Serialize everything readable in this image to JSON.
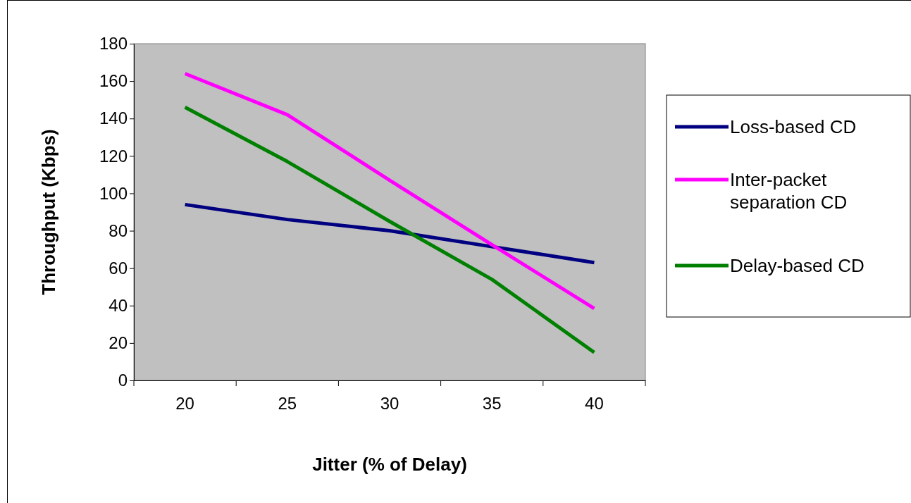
{
  "chart_data": {
    "type": "line",
    "xlabel": "Jitter (% of Delay)",
    "ylabel": "Throughput (Kbps)",
    "categories": [
      "20",
      "25",
      "30",
      "35",
      "40"
    ],
    "ylim": [
      0,
      180
    ],
    "yticks": [
      0,
      20,
      40,
      60,
      80,
      100,
      120,
      140,
      160,
      180
    ],
    "grid": false,
    "legend": "right",
    "marker": "none",
    "line_style": "solid",
    "series": [
      {
        "name": "Loss-based CD",
        "color": "#000080",
        "values": [
          94,
          86,
          80,
          71.5,
          63
        ]
      },
      {
        "name": "Inter-packet separation CD",
        "color": "#ff00ff",
        "values": [
          164,
          142,
          107,
          72.5,
          38.5
        ]
      },
      {
        "name": "Delay-based CD",
        "color": "#008000",
        "values": [
          146,
          117,
          85,
          54,
          15
        ]
      }
    ]
  }
}
